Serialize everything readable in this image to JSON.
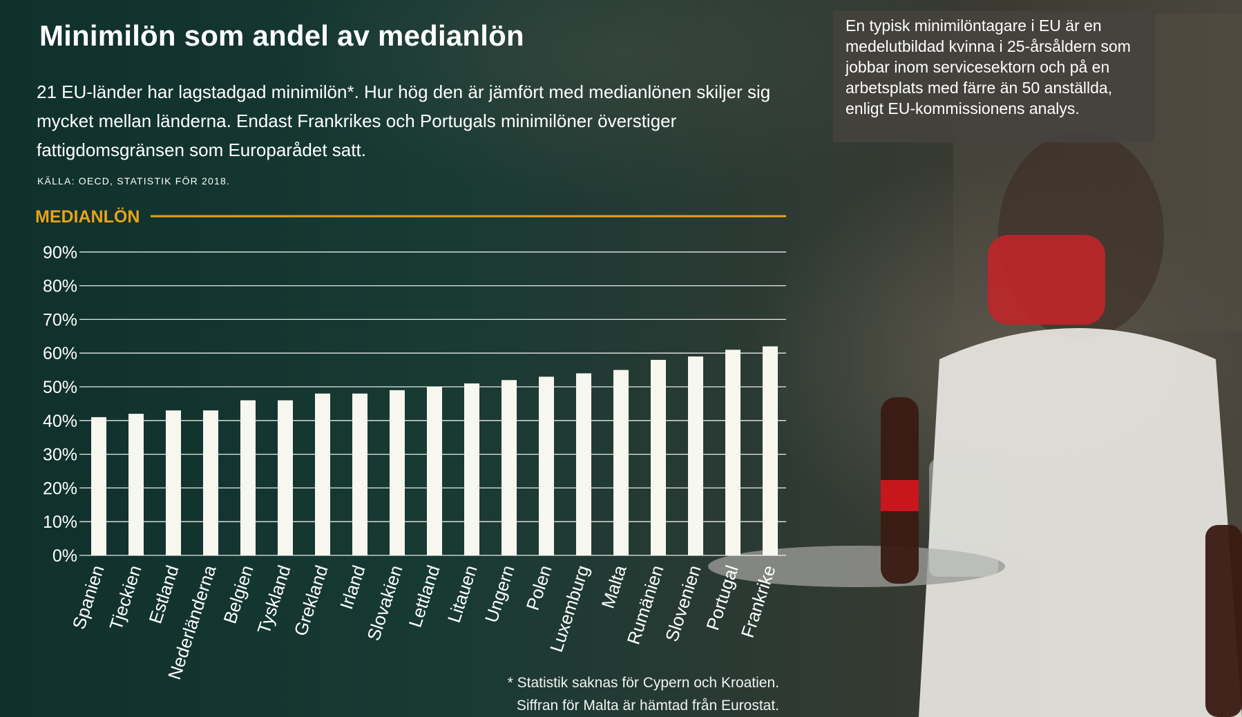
{
  "title": "Minimilön som andel av medianlön",
  "subtitle": "21 EU-länder har lagstadgad minimilön*. Hur hög den är jämfört med medianlönen skiljer sig mycket mellan länderna. Endast Frankrikes och Portugals minimilöner överstiger fattigdomsgränsen som Europarådet satt.",
  "source": "Källa: OECD, statistik för 2018.",
  "callout": "En typisk minimilöntagare i EU är en medelutbildad kvinna i 25-årsåldern som jobbar inom servicesektorn och på en arbetsplats med färre än 50 anställda, enligt EU-kommissionens analys.",
  "footnote": {
    "line1": "* Statistik saknas för Cypern och Kroatien.",
    "line2": "Siffran för Malta är hämtad från Eurostat."
  },
  "colors": {
    "bar": "#f7f7ef",
    "median_line": "#e8a317",
    "grid": "#ffffff",
    "callout_bg": "#46423e"
  },
  "chart_data": {
    "type": "bar",
    "categories": [
      "Spanien",
      "Tjeckien",
      "Estland",
      "Nederländerna",
      "Belgien",
      "Tyskland",
      "Grekland",
      "Irland",
      "Slovakien",
      "Lettland",
      "Litauen",
      "Ungern",
      "Polen",
      "Luxemburg",
      "Malta",
      "Rumänien",
      "Slovenien",
      "Portugal",
      "Frankrike"
    ],
    "values": [
      41,
      42,
      43,
      43,
      46,
      46,
      48,
      48,
      49,
      50,
      51,
      52,
      53,
      54,
      55,
      58,
      59,
      61,
      62
    ],
    "unit": "%",
    "ylim": [
      0,
      100
    ],
    "yticks": [
      "0%",
      "10%",
      "20%",
      "30%",
      "40%",
      "50%",
      "60%",
      "70%",
      "80%",
      "90%"
    ],
    "grid": true,
    "reference_line": {
      "label": "MEDIANLÖN",
      "value": 100
    }
  }
}
